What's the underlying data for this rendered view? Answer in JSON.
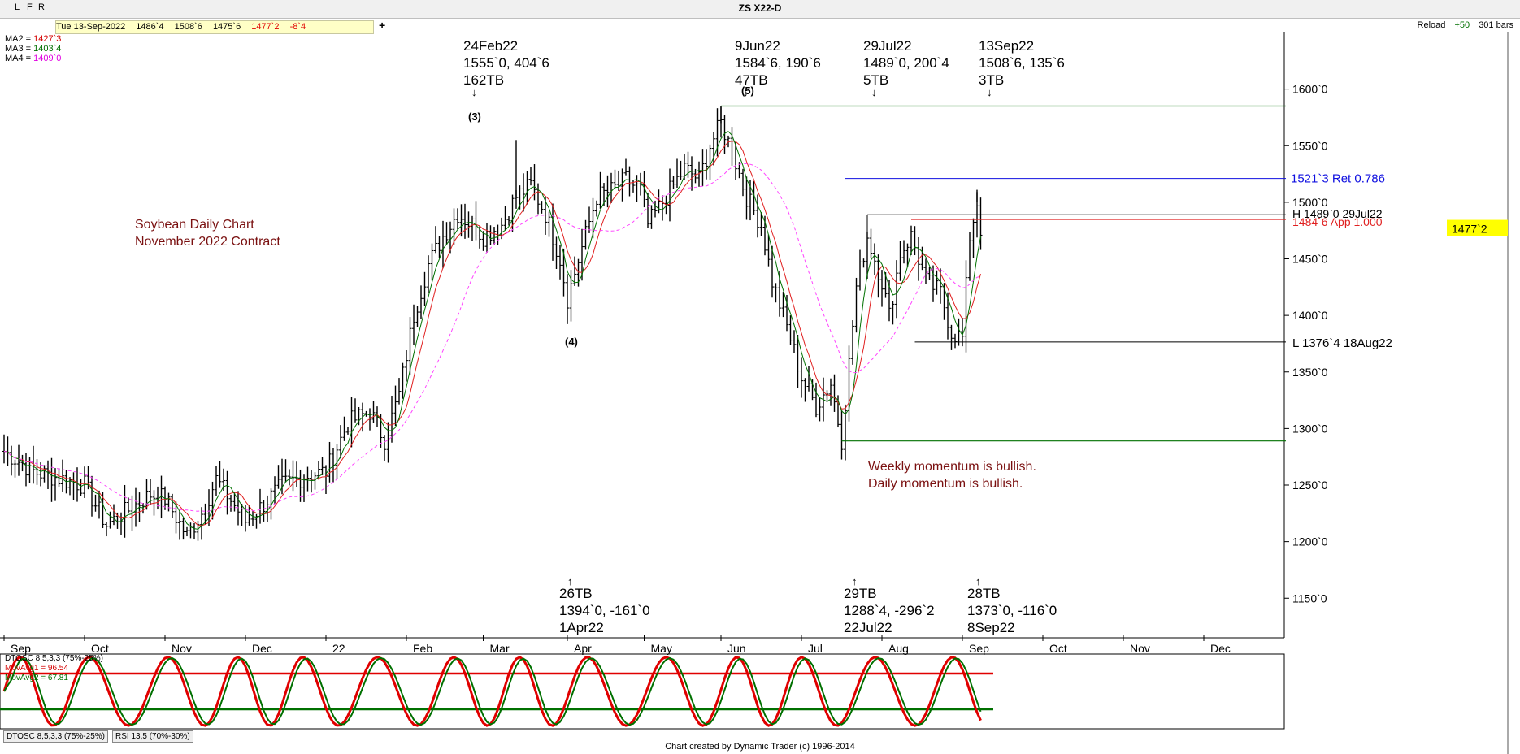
{
  "toolbar": {
    "buttons": [
      "L",
      "F",
      "R"
    ],
    "quote": [
      "Tue 13-Sep-2022",
      "1486`4",
      "1508`6",
      "1475`6",
      "1477`2",
      "-8`4"
    ],
    "plus": "+",
    "reload": "Reload",
    "bars_plus": "+50",
    "bars": "301 bars"
  },
  "title": "ZS X22-D",
  "ma_labels": [
    {
      "label": "MA2 = ",
      "value": "1427`3",
      "color": "#d40000"
    },
    {
      "label": "MA3 = ",
      "value": "1403`4",
      "color": "#007000"
    },
    {
      "label": "MA4 = ",
      "value": "1409`0",
      "color": "#e000e0"
    }
  ],
  "notes": {
    "chart_title": [
      "Soybean Daily Chart",
      "November 2022 Contract"
    ],
    "momentum": [
      "Weekly momentum is bullish.",
      "Daily momentum is bullish."
    ],
    "color": "#7a1010"
  },
  "annotations_top": [
    {
      "lines": [
        "24Feb22",
        "1555`0, 404`6",
        "162TB"
      ]
    },
    {
      "lines": [
        "9Jun22",
        "1584`6, 190`6",
        "47TB"
      ]
    },
    {
      "lines": [
        "29Jul22",
        "1489`0, 200`4",
        "5TB"
      ]
    },
    {
      "lines": [
        "13Sep22",
        "1508`6, 135`6",
        "3TB"
      ]
    }
  ],
  "annotations_bottom": [
    {
      "lines": [
        "26TB",
        "1394`0, -161`0",
        "1Apr22"
      ]
    },
    {
      "lines": [
        "29TB",
        "1288`4, -296`2",
        "22Jul22"
      ]
    },
    {
      "lines": [
        "28TB",
        "1373`0, -116`0",
        "8Sep22"
      ]
    }
  ],
  "wave_labels": [
    "(3)",
    "(4)",
    "(5)"
  ],
  "level_labels": [
    {
      "text": "1521`3 Ret 0.786",
      "color": "#1010e0"
    },
    {
      "text": "H 1489`0 29Jul22",
      "color": "#000000"
    },
    {
      "text": "1484`6 App 1.000",
      "color": "#e02020"
    },
    {
      "text": "L 1376`4 18Aug22",
      "color": "#000000"
    }
  ],
  "last_price": {
    "text": "1477`2",
    "bg": "#ffff00"
  },
  "oscillator": {
    "labels": [
      {
        "text": "DTOSC 8,5,3,3 (75%-25%)",
        "color": "#000000"
      },
      {
        "text": "MovAvg1 = 96.54",
        "color": "#d40000"
      },
      {
        "text": "MovAvg2 = 67.81",
        "color": "#007000"
      }
    ],
    "upper": 75,
    "lower": 25,
    "upper_color": "#e00000",
    "lower_color": "#007000"
  },
  "tabs": [
    "DTOSC 8,5,3,3 (75%-25%)",
    "RSI 13,5 (70%-30%)"
  ],
  "credit": "Chart created by Dynamic Trader  (c) 1996-2014",
  "chart_data": {
    "type": "line",
    "title": "ZS X22-D",
    "ylim": [
      1115,
      1650
    ],
    "yticks": [
      "1600`0",
      "1550`0",
      "1500`0",
      "1450`0",
      "1400`0",
      "1350`0",
      "1300`0",
      "1250`0",
      "1200`0",
      "1150`0"
    ],
    "ytick_values": [
      1600,
      1550,
      1500,
      1450,
      1400,
      1350,
      1300,
      1250,
      1200,
      1150
    ],
    "months": [
      "Sep",
      "Oct",
      "Nov",
      "Dec",
      "22",
      "Feb",
      "Mar",
      "Apr",
      "May",
      "Jun",
      "Jul",
      "Aug",
      "Sep",
      "Oct",
      "Nov",
      "Dec"
    ],
    "month_start_index": [
      0,
      22,
      44,
      66,
      88,
      110,
      131,
      154,
      175,
      196,
      218,
      240,
      262,
      284,
      306,
      328
    ],
    "series": [
      {
        "name": "close",
        "color": "#000000",
        "points": [
          [
            0,
            1280
          ],
          [
            8,
            1262
          ],
          [
            16,
            1255
          ],
          [
            22,
            1250
          ],
          [
            28,
            1215
          ],
          [
            34,
            1228
          ],
          [
            40,
            1242
          ],
          [
            44,
            1238
          ],
          [
            50,
            1205
          ],
          [
            54,
            1225
          ],
          [
            58,
            1255
          ],
          [
            66,
            1218
          ],
          [
            70,
            1230
          ],
          [
            76,
            1250
          ],
          [
            82,
            1258
          ],
          [
            88,
            1262
          ],
          [
            94,
            1305
          ],
          [
            100,
            1315
          ],
          [
            104,
            1290
          ],
          [
            108,
            1330
          ],
          [
            112,
            1400
          ],
          [
            116,
            1445
          ],
          [
            120,
            1470
          ],
          [
            124,
            1490
          ],
          [
            128,
            1480
          ],
          [
            131,
            1470
          ],
          [
            136,
            1480
          ],
          [
            140,
            1505
          ],
          [
            144,
            1515
          ],
          [
            148,
            1490
          ],
          [
            152,
            1450
          ],
          [
            154,
            1415
          ],
          [
            158,
            1460
          ],
          [
            162,
            1505
          ],
          [
            166,
            1510
          ],
          [
            170,
            1520
          ],
          [
            174,
            1510
          ],
          [
            176,
            1480
          ],
          [
            180,
            1500
          ],
          [
            186,
            1530
          ],
          [
            190,
            1520
          ],
          [
            193,
            1550
          ],
          [
            196,
            1570
          ],
          [
            199,
            1545
          ],
          [
            203,
            1505
          ],
          [
            207,
            1480
          ],
          [
            210,
            1430
          ],
          [
            213,
            1400
          ],
          [
            215,
            1380
          ],
          [
            218,
            1345
          ],
          [
            222,
            1320
          ],
          [
            226,
            1340
          ],
          [
            229,
            1290
          ],
          [
            233,
            1425
          ],
          [
            236,
            1470
          ],
          [
            240,
            1430
          ],
          [
            242,
            1400
          ],
          [
            245,
            1455
          ],
          [
            248,
            1470
          ],
          [
            252,
            1430
          ],
          [
            256,
            1420
          ],
          [
            259,
            1385
          ],
          [
            262,
            1380
          ],
          [
            264,
            1470
          ],
          [
            266,
            1500
          ],
          [
            267,
            1477
          ]
        ]
      },
      {
        "name": "MA2",
        "color": "#e02020"
      },
      {
        "name": "MA3",
        "color": "#007000"
      },
      {
        "name": "MA4",
        "color": "#ff44ff"
      }
    ]
  }
}
